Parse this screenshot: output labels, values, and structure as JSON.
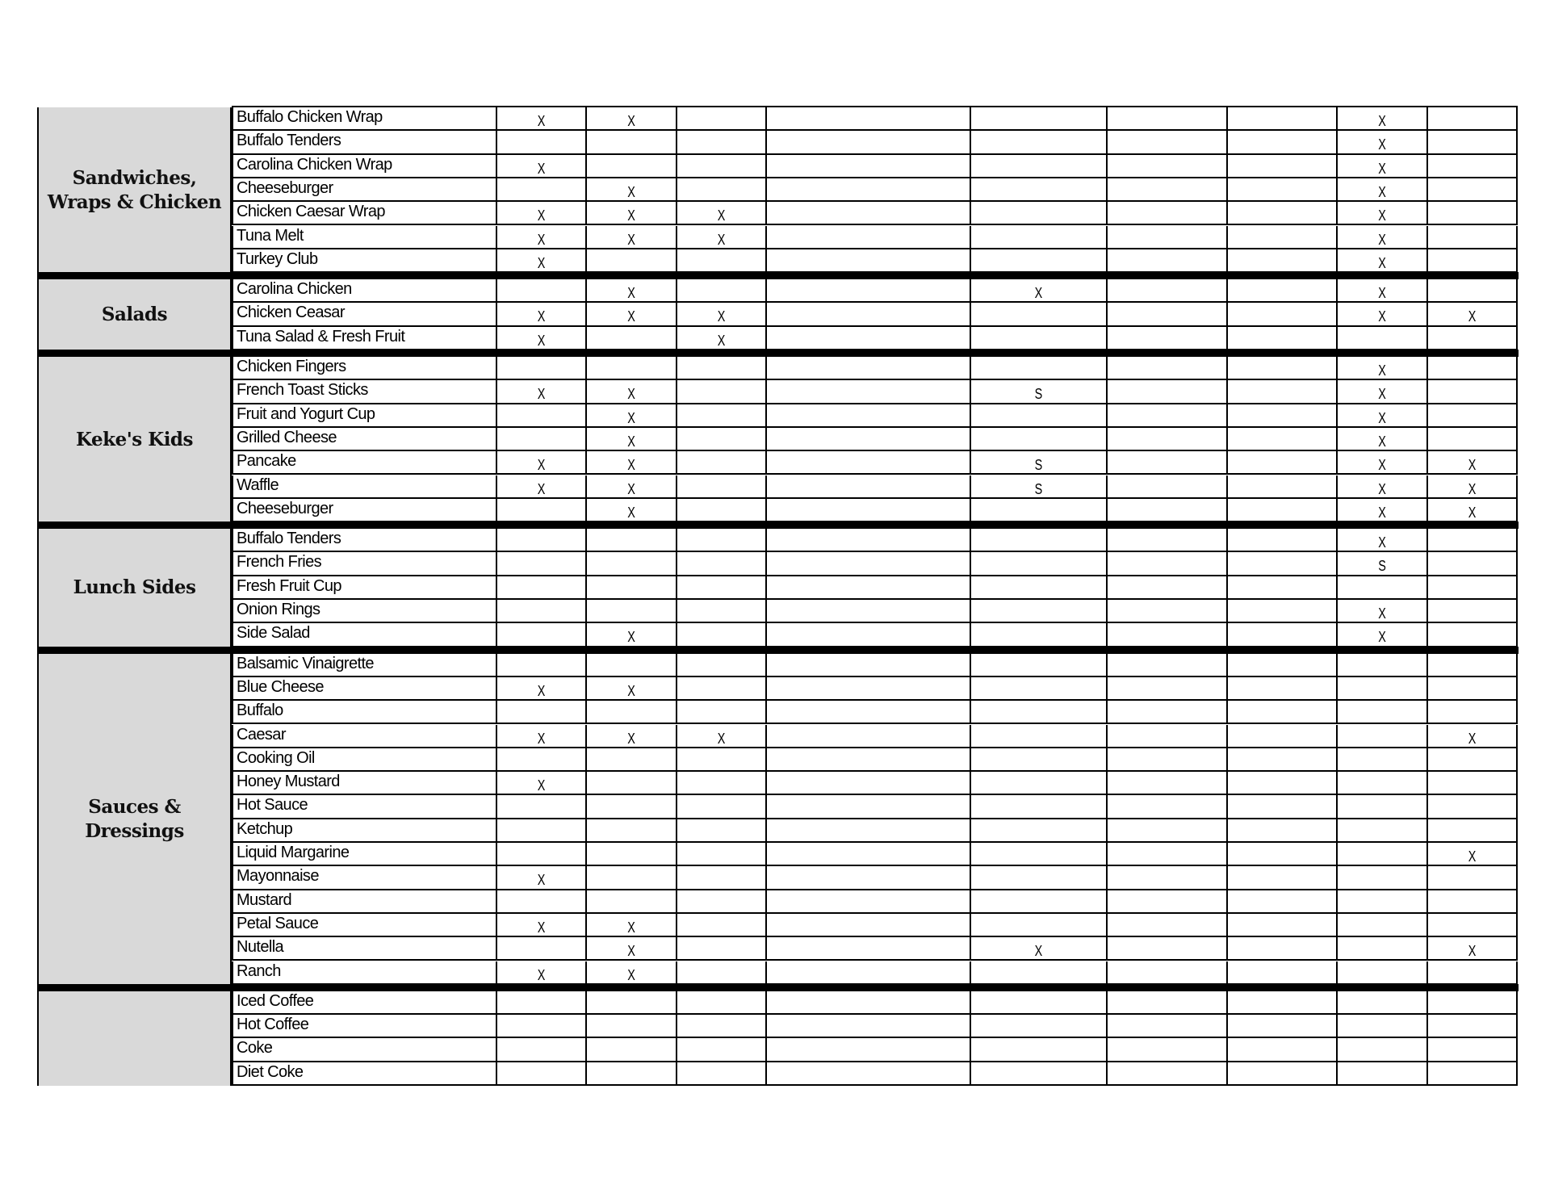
{
  "colors": {
    "label_bg": "#d9d9d9",
    "rule": "#000000"
  },
  "sections": [
    {
      "label": "Sandwiches,\nWraps & Chicken",
      "rows": [
        {
          "item": "Buffalo Chicken Wrap",
          "marks": [
            "X",
            "X",
            "",
            "",
            "",
            "",
            "",
            "X",
            ""
          ]
        },
        {
          "item": "Buffalo Tenders",
          "marks": [
            "",
            "",
            "",
            "",
            "",
            "",
            "",
            "X",
            ""
          ]
        },
        {
          "item": "Carolina Chicken Wrap",
          "marks": [
            "X",
            "",
            "",
            "",
            "",
            "",
            "",
            "X",
            ""
          ]
        },
        {
          "item": "Cheeseburger",
          "marks": [
            "",
            "X",
            "",
            "",
            "",
            "",
            "",
            "X",
            ""
          ]
        },
        {
          "item": "Chicken Caesar Wrap",
          "marks": [
            "X",
            "X",
            "X",
            "",
            "",
            "",
            "",
            "X",
            ""
          ]
        },
        {
          "item": "Tuna Melt",
          "marks": [
            "X",
            "X",
            "X",
            "",
            "",
            "",
            "",
            "X",
            ""
          ]
        },
        {
          "item": "Turkey Club",
          "marks": [
            "X",
            "",
            "",
            "",
            "",
            "",
            "",
            "X",
            ""
          ]
        }
      ]
    },
    {
      "label": "Salads",
      "rows": [
        {
          "item": "Carolina Chicken",
          "marks": [
            "",
            "X",
            "",
            "",
            "X",
            "",
            "",
            "X",
            ""
          ]
        },
        {
          "item": "Chicken Ceasar",
          "marks": [
            "X",
            "X",
            "X",
            "",
            "",
            "",
            "",
            "X",
            "X"
          ]
        },
        {
          "item": "Tuna Salad & Fresh Fruit",
          "marks": [
            "X",
            "",
            "X",
            "",
            "",
            "",
            "",
            "",
            ""
          ]
        }
      ]
    },
    {
      "label": "Keke's Kids",
      "rows": [
        {
          "item": "Chicken Fingers",
          "marks": [
            "",
            "",
            "",
            "",
            "",
            "",
            "",
            "X",
            ""
          ]
        },
        {
          "item": "French Toast Sticks",
          "marks": [
            "X",
            "X",
            "",
            "",
            "S",
            "",
            "",
            "X",
            ""
          ]
        },
        {
          "item": "Fruit and Yogurt Cup",
          "marks": [
            "",
            "X",
            "",
            "",
            "",
            "",
            "",
            "X",
            ""
          ]
        },
        {
          "item": "Grilled Cheese",
          "marks": [
            "",
            "X",
            "",
            "",
            "",
            "",
            "",
            "X",
            ""
          ]
        },
        {
          "item": "Pancake",
          "marks": [
            "X",
            "X",
            "",
            "",
            "S",
            "",
            "",
            "X",
            "X"
          ]
        },
        {
          "item": "Waffle",
          "marks": [
            "X",
            "X",
            "",
            "",
            "S",
            "",
            "",
            "X",
            "X"
          ]
        },
        {
          "item": "Cheeseburger",
          "marks": [
            "",
            "X",
            "",
            "",
            "",
            "",
            "",
            "X",
            "X"
          ]
        }
      ]
    },
    {
      "label": "Lunch Sides",
      "rows": [
        {
          "item": "Buffalo Tenders",
          "marks": [
            "",
            "",
            "",
            "",
            "",
            "",
            "",
            "X",
            ""
          ]
        },
        {
          "item": "French Fries",
          "marks": [
            "",
            "",
            "",
            "",
            "",
            "",
            "",
            "S",
            ""
          ]
        },
        {
          "item": "Fresh Fruit Cup",
          "marks": [
            "",
            "",
            "",
            "",
            "",
            "",
            "",
            "",
            ""
          ]
        },
        {
          "item": "Onion Rings",
          "marks": [
            "",
            "",
            "",
            "",
            "",
            "",
            "",
            "X",
            ""
          ]
        },
        {
          "item": "Side Salad",
          "marks": [
            "",
            "X",
            "",
            "",
            "",
            "",
            "",
            "X",
            ""
          ]
        }
      ]
    },
    {
      "label": "Sauces &\nDressings",
      "rows": [
        {
          "item": "Balsamic Vinaigrette",
          "marks": [
            "",
            "",
            "",
            "",
            "",
            "",
            "",
            "",
            ""
          ]
        },
        {
          "item": "Blue Cheese",
          "marks": [
            "X",
            "X",
            "",
            "",
            "",
            "",
            "",
            "",
            ""
          ]
        },
        {
          "item": "Buffalo",
          "marks": [
            "",
            "",
            "",
            "",
            "",
            "",
            "",
            "",
            ""
          ]
        },
        {
          "item": "Caesar",
          "marks": [
            "X",
            "X",
            "X",
            "",
            "",
            "",
            "",
            "",
            "X"
          ]
        },
        {
          "item": "Cooking Oil",
          "marks": [
            "",
            "",
            "",
            "",
            "",
            "",
            "",
            "",
            ""
          ]
        },
        {
          "item": "Honey Mustard",
          "marks": [
            "X",
            "",
            "",
            "",
            "",
            "",
            "",
            "",
            ""
          ]
        },
        {
          "item": "Hot Sauce",
          "marks": [
            "",
            "",
            "",
            "",
            "",
            "",
            "",
            "",
            ""
          ]
        },
        {
          "item": "Ketchup",
          "marks": [
            "",
            "",
            "",
            "",
            "",
            "",
            "",
            "",
            ""
          ]
        },
        {
          "item": "Liquid Margarine",
          "marks": [
            "",
            "",
            "",
            "",
            "",
            "",
            "",
            "",
            "X"
          ]
        },
        {
          "item": "Mayonnaise",
          "marks": [
            "X",
            "",
            "",
            "",
            "",
            "",
            "",
            "",
            ""
          ]
        },
        {
          "item": "Mustard",
          "marks": [
            "",
            "",
            "",
            "",
            "",
            "",
            "",
            "",
            ""
          ]
        },
        {
          "item": "Petal Sauce",
          "marks": [
            "X",
            "X",
            "",
            "",
            "",
            "",
            "",
            "",
            ""
          ]
        },
        {
          "item": "Nutella",
          "marks": [
            "",
            "X",
            "",
            "",
            "X",
            "",
            "",
            "",
            "X"
          ]
        },
        {
          "item": "Ranch",
          "marks": [
            "X",
            "X",
            "",
            "",
            "",
            "",
            "",
            "",
            ""
          ]
        }
      ]
    },
    {
      "label": "",
      "rows": [
        {
          "item": "Iced Coffee",
          "marks": [
            "",
            "",
            "",
            "",
            "",
            "",
            "",
            "",
            ""
          ]
        },
        {
          "item": "Hot Coffee",
          "marks": [
            "",
            "",
            "",
            "",
            "",
            "",
            "",
            "",
            ""
          ]
        },
        {
          "item": "Coke",
          "marks": [
            "",
            "",
            "",
            "",
            "",
            "",
            "",
            "",
            ""
          ]
        },
        {
          "item": "Diet Coke",
          "marks": [
            "",
            "",
            "",
            "",
            "",
            "",
            "",
            "",
            ""
          ]
        }
      ]
    }
  ]
}
